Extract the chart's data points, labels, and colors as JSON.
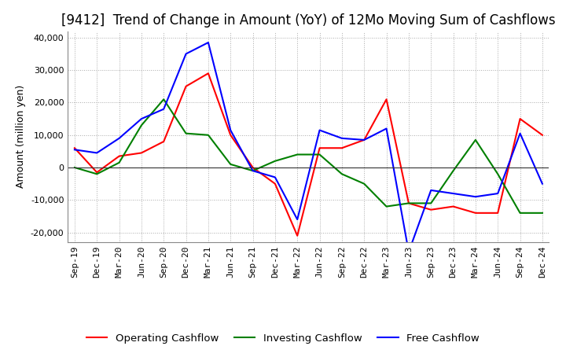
{
  "title": "[9412]  Trend of Change in Amount (YoY) of 12Mo Moving Sum of Cashflows",
  "ylabel": "Amount (million yen)",
  "ylim": [
    -23000,
    42000
  ],
  "yticks": [
    -20000,
    -10000,
    0,
    10000,
    20000,
    30000,
    40000
  ],
  "x_labels": [
    "Sep-19",
    "Dec-19",
    "Mar-20",
    "Jun-20",
    "Sep-20",
    "Dec-20",
    "Mar-21",
    "Jun-21",
    "Sep-21",
    "Dec-21",
    "Mar-22",
    "Jun-22",
    "Sep-22",
    "Dec-22",
    "Mar-23",
    "Jun-23",
    "Sep-23",
    "Dec-23",
    "Mar-24",
    "Jun-24",
    "Sep-24",
    "Dec-24"
  ],
  "operating": [
    6000,
    -1500,
    3500,
    4500,
    8000,
    25000,
    29000,
    10000,
    0,
    -5000,
    -21000,
    6000,
    6000,
    8500,
    21000,
    -11000,
    -13000,
    -12000,
    -14000,
    -14000,
    15000,
    10000
  ],
  "investing": [
    0,
    -2000,
    1500,
    13000,
    21000,
    10500,
    10000,
    1000,
    -1000,
    2000,
    4000,
    4000,
    -2000,
    -5000,
    -12000,
    -11000,
    -11000,
    -1000,
    8500,
    -2000,
    -14000,
    -14000
  ],
  "free": [
    5500,
    4500,
    9000,
    15000,
    18000,
    35000,
    38500,
    11500,
    -1000,
    -3000,
    -16000,
    11500,
    9000,
    8500,
    12000,
    -26000,
    -7000,
    -8000,
    -9000,
    -8000,
    10500,
    -5000
  ],
  "operating_color": "#ff0000",
  "investing_color": "#008000",
  "free_color": "#0000ff",
  "background_color": "#ffffff",
  "grid_color": "#aaaaaa",
  "title_fontsize": 12,
  "legend_fontsize": 9.5,
  "tick_fontsize": 8
}
